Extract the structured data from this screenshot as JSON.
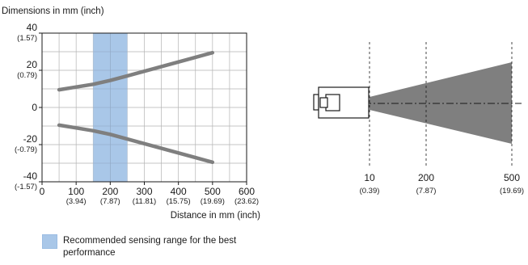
{
  "chart_data": {
    "type": "line",
    "title": "Dimensions in mm (inch)",
    "xlabel": "Distance in mm (inch)",
    "xlim": [
      0,
      600
    ],
    "ylim": [
      -40,
      40
    ],
    "grid": true,
    "x_ticks": [
      {
        "value": 0,
        "label": "0",
        "sub": ""
      },
      {
        "value": 100,
        "label": "100",
        "sub": "(3.94)"
      },
      {
        "value": 200,
        "label": "200",
        "sub": "(7.87)"
      },
      {
        "value": 300,
        "label": "300",
        "sub": "(11.81)"
      },
      {
        "value": 400,
        "label": "400",
        "sub": "(15.75)"
      },
      {
        "value": 500,
        "label": "500",
        "sub": "(19.69)"
      },
      {
        "value": 600,
        "label": "600",
        "sub": "(23.62)"
      }
    ],
    "y_ticks": [
      {
        "value": 40,
        "label": "40",
        "sub": "(1.57)"
      },
      {
        "value": 20,
        "label": "20",
        "sub": "(0.79)"
      },
      {
        "value": 0,
        "label": "0",
        "sub": ""
      },
      {
        "value": -20,
        "label": "-20",
        "sub": "(-0.79)"
      },
      {
        "value": -40,
        "label": "-40",
        "sub": "(-1.57)"
      }
    ],
    "recommended_range": {
      "x": [
        150,
        250
      ],
      "color": "#a9c7e8"
    },
    "series": [
      {
        "color": "#7f7f7f",
        "points": [
          [
            50,
            9.5
          ],
          [
            100,
            11
          ],
          [
            150,
            12.5
          ],
          [
            200,
            14.5
          ],
          [
            250,
            17
          ],
          [
            300,
            19.5
          ],
          [
            350,
            22
          ],
          [
            400,
            24.5
          ],
          [
            450,
            27
          ],
          [
            500,
            29.5
          ]
        ]
      },
      {
        "color": "#7f7f7f",
        "points": [
          [
            50,
            -9.5
          ],
          [
            100,
            -11
          ],
          [
            150,
            -12.5
          ],
          [
            200,
            -14.5
          ],
          [
            250,
            -17
          ],
          [
            300,
            -19.5
          ],
          [
            350,
            -22
          ],
          [
            400,
            -24.5
          ],
          [
            450,
            -27
          ],
          [
            500,
            -29.5
          ]
        ]
      }
    ]
  },
  "diagram": {
    "markers": [
      {
        "label": "10",
        "sub": "(0.39)"
      },
      {
        "label": "200",
        "sub": "(7.87)"
      },
      {
        "label": "500",
        "sub": "(19.69)"
      }
    ],
    "beam_color": "#7f7f7f"
  },
  "legend": {
    "label": "Recommended sensing range for the best performance",
    "color": "#a9c7e8"
  }
}
